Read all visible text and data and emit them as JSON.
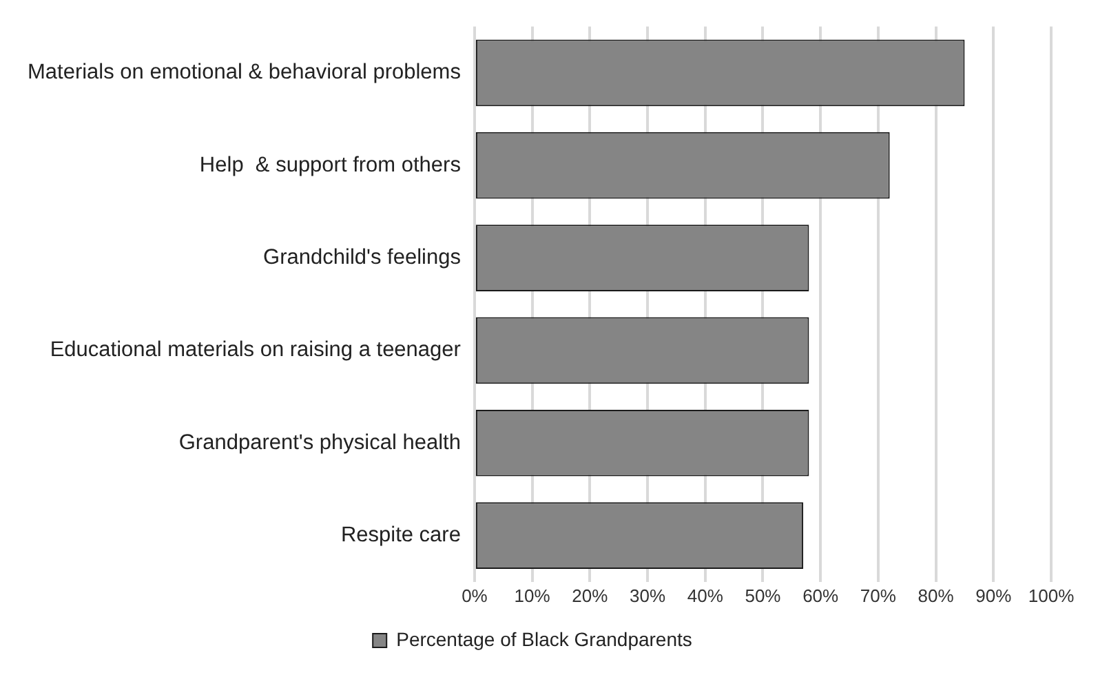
{
  "chart_data": {
    "type": "bar",
    "orientation": "horizontal",
    "categories": [
      "Materials on emotional & behavioral problems",
      "Help  & support from others",
      "Grandchild's feelings",
      "Educational materials on raising a teenager",
      "Grandparent's physical health",
      "Respite care"
    ],
    "series": [
      {
        "name": "Percentage of Black Grandparents",
        "color": "#858585",
        "values": [
          85,
          72,
          58,
          58,
          58,
          57
        ]
      }
    ],
    "xlim": [
      0,
      100
    ],
    "xticks": [
      {
        "value": 0,
        "label": "0%"
      },
      {
        "value": 10,
        "label": "10%"
      },
      {
        "value": 20,
        "label": "20%"
      },
      {
        "value": 30,
        "label": "30%"
      },
      {
        "value": 40,
        "label": "40%"
      },
      {
        "value": 50,
        "label": "50%"
      },
      {
        "value": 60,
        "label": "60%"
      },
      {
        "value": 70,
        "label": "70%"
      },
      {
        "value": 80,
        "label": "80%"
      },
      {
        "value": 90,
        "label": "90%"
      },
      {
        "value": 100,
        "label": "100%"
      }
    ],
    "grid": "x",
    "legend": "bottom"
  }
}
